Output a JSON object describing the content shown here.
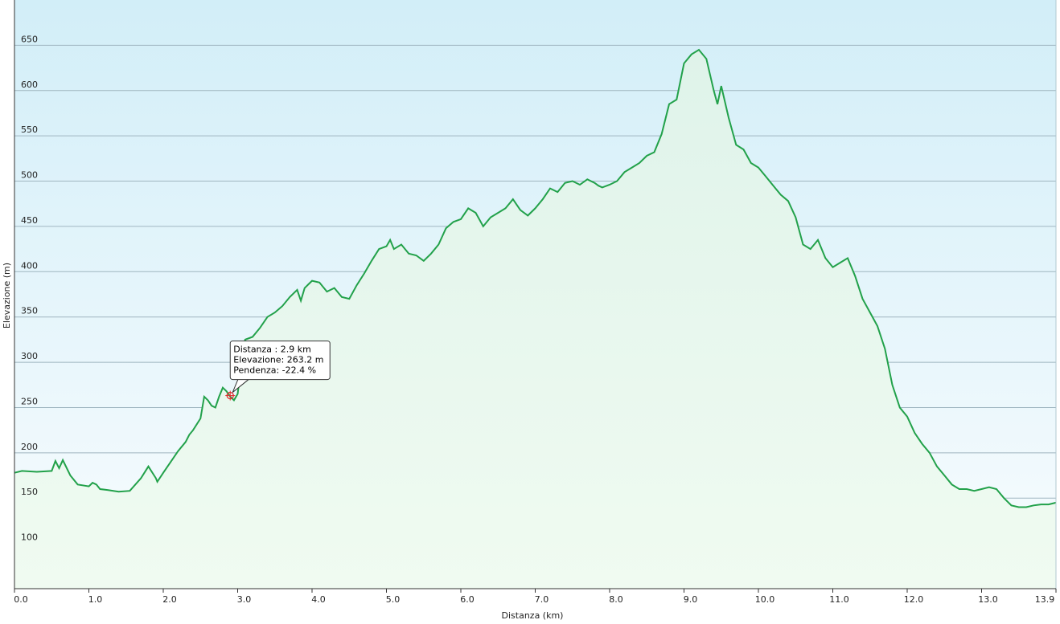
{
  "chart_data": {
    "type": "area",
    "title": "",
    "xlabel": "Distanza  (km)",
    "ylabel": "Elevazione (m)",
    "xlim": [
      0,
      14.0
    ],
    "ylim": [
      50,
      700
    ],
    "x_ticks": [
      "0.0",
      "1.0",
      "2.0",
      "3.0",
      "4.0",
      "5.0",
      "6.0",
      "7.0",
      "8.0",
      "9.0",
      "10.0",
      "11.0",
      "12.0",
      "13.0",
      "13.9"
    ],
    "y_ticks": [
      "100",
      "150",
      "200",
      "250",
      "300",
      "350",
      "400",
      "450",
      "500",
      "550",
      "600",
      "650"
    ],
    "grid": true,
    "line_color": "#22a14a",
    "fill_color_top": "#dff3ea",
    "fill_color_bottom": "#f0fbf1",
    "background_top": "#d2eef8",
    "background_bottom": "#f8fcfe",
    "series": [
      {
        "x": [
          0,
          0.1,
          0.3,
          0.5,
          0.55,
          0.6,
          0.65,
          0.75,
          0.85,
          1.0,
          1.05,
          1.1,
          1.15,
          1.25,
          1.4,
          1.55,
          1.7,
          1.8,
          1.9,
          1.92,
          2.0,
          2.1,
          2.2,
          2.3,
          2.35,
          2.4,
          2.5,
          2.55,
          2.6,
          2.65,
          2.7,
          2.75,
          2.8,
          2.85,
          2.9,
          2.95,
          3.0,
          3.05,
          3.1,
          3.2,
          3.3,
          3.4,
          3.5,
          3.6,
          3.7,
          3.8,
          3.85,
          3.9,
          4.0,
          4.1,
          4.2,
          4.3,
          4.4,
          4.5,
          4.6,
          4.7,
          4.8,
          4.9,
          5.0,
          5.05,
          5.1,
          5.2,
          5.3,
          5.4,
          5.5,
          5.6,
          5.7,
          5.8,
          5.9,
          6.0,
          6.1,
          6.2,
          6.3,
          6.4,
          6.5,
          6.6,
          6.7,
          6.8,
          6.9,
          7.0,
          7.1,
          7.2,
          7.3,
          7.4,
          7.5,
          7.6,
          7.7,
          7.8,
          7.85,
          7.9,
          8.0,
          8.1,
          8.2,
          8.3,
          8.4,
          8.5,
          8.6,
          8.7,
          8.8,
          8.9,
          9.0,
          9.1,
          9.2,
          9.3,
          9.4,
          9.45,
          9.5,
          9.6,
          9.7,
          9.8,
          9.9,
          10.0,
          10.1,
          10.2,
          10.3,
          10.4,
          10.5,
          10.6,
          10.7,
          10.8,
          10.9,
          11.0,
          11.1,
          11.2,
          11.3,
          11.4,
          11.5,
          11.6,
          11.7,
          11.8,
          11.9,
          12.0,
          12.1,
          12.2,
          12.3,
          12.4,
          12.5,
          12.6,
          12.7,
          12.8,
          12.9,
          13.0,
          13.1,
          13.2,
          13.3,
          13.4,
          13.5,
          13.6,
          13.7,
          13.8,
          13.9,
          14.0
        ],
        "y": [
          178,
          180,
          179,
          180,
          191,
          183,
          192,
          175,
          165,
          163,
          167,
          165,
          160,
          159,
          157,
          158,
          172,
          185,
          172,
          168,
          178,
          190,
          202,
          212,
          220,
          225,
          238,
          262,
          258,
          252,
          250,
          262,
          272,
          268,
          262,
          258,
          265,
          298,
          325,
          328,
          338,
          350,
          355,
          362,
          372,
          380,
          368,
          382,
          390,
          388,
          378,
          382,
          372,
          370,
          385,
          398,
          412,
          425,
          428,
          435,
          425,
          430,
          420,
          418,
          412,
          420,
          430,
          448,
          455,
          458,
          470,
          465,
          450,
          460,
          465,
          470,
          480,
          468,
          462,
          470,
          480,
          492,
          488,
          498,
          500,
          496,
          502,
          498,
          495,
          493,
          496,
          500,
          510,
          515,
          520,
          528,
          532,
          552,
          585,
          590,
          630,
          640,
          645,
          635,
          600,
          585,
          605,
          570,
          540,
          535,
          520,
          515,
          505,
          495,
          485,
          478,
          460,
          430,
          425,
          435,
          415,
          405,
          410,
          415,
          395,
          370,
          355,
          340,
          315,
          275,
          250,
          240,
          222,
          210,
          200,
          185,
          175,
          165,
          160,
          160,
          158,
          160,
          162,
          160,
          150,
          142,
          140,
          140,
          142,
          143,
          143,
          145
        ]
      }
    ],
    "tooltip": {
      "lines": [
        "Distanza  : 2.9 km",
        "Elevazione: 263.2 m",
        "Pendenza: -22.4 %"
      ],
      "x": 2.9,
      "y": 263.2
    }
  }
}
